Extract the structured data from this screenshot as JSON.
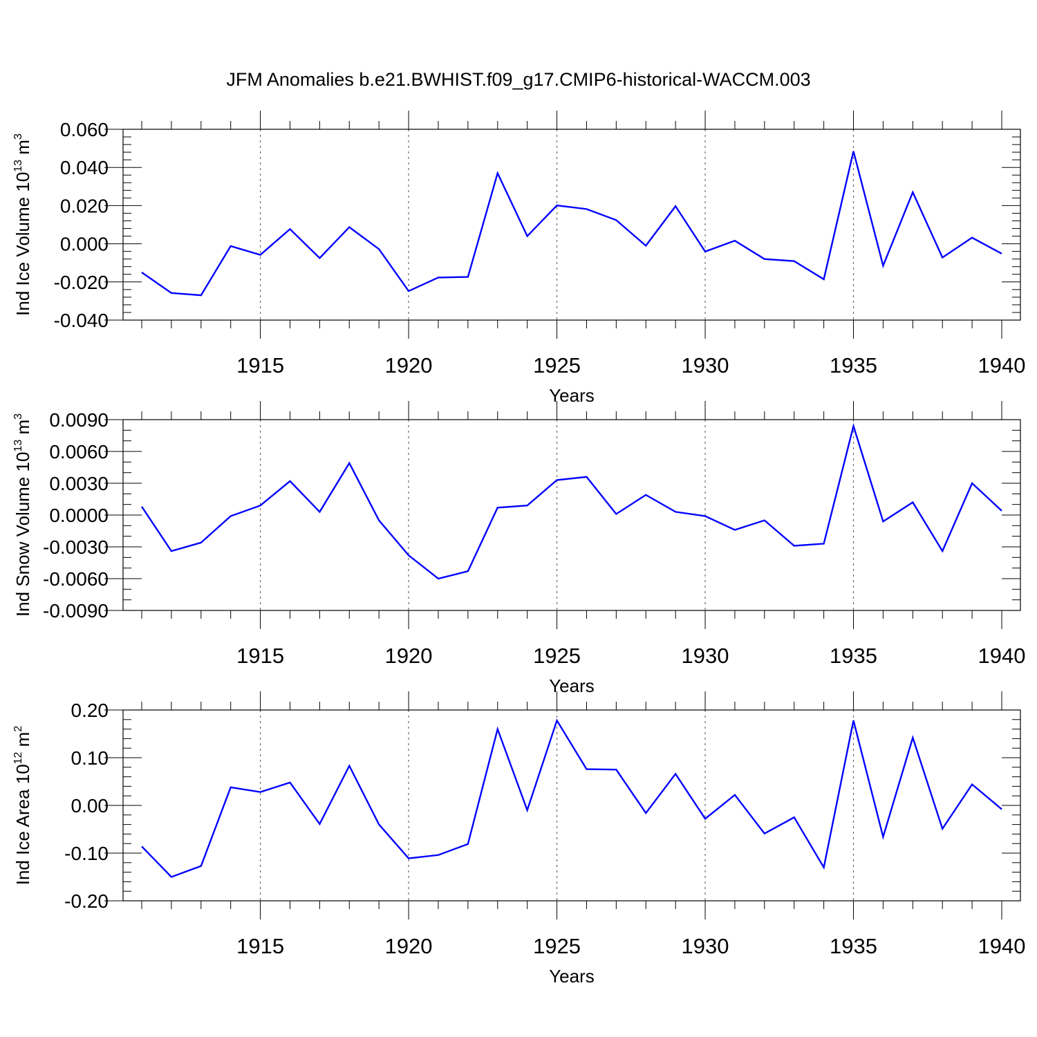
{
  "title": "JFM Anomalies b.e21.BWHIST.f09_g17.CMIP6-historical-WACCM.003",
  "colors": {
    "line": "#0000ff",
    "grid": "#666666",
    "axis": "#000000"
  },
  "chart_data": [
    {
      "type": "line",
      "ylabel": {
        "text": "Ind Ice Volume 10",
        "sup1": "13",
        "unit": " m",
        "sup2": "3"
      },
      "xlabel": "Years",
      "xlim": [
        1911,
        1940
      ],
      "ylim": [
        -0.04,
        0.06
      ],
      "yticks": [
        -0.04,
        -0.02,
        0.0,
        0.02,
        0.04,
        0.06
      ],
      "yticklabels": [
        "-0.040",
        "-0.020",
        "0.000",
        "0.020",
        "0.040",
        "0.060"
      ],
      "yminor": 0.004,
      "xticks": [
        1915,
        1920,
        1925,
        1930,
        1935,
        1940
      ],
      "xticklabels": [
        "1915",
        "1920",
        "1925",
        "1930",
        "1935",
        "1940"
      ],
      "x": [
        1911,
        1912,
        1913,
        1914,
        1915,
        1916,
        1917,
        1918,
        1919,
        1920,
        1921,
        1922,
        1923,
        1924,
        1925,
        1926,
        1927,
        1928,
        1929,
        1930,
        1931,
        1932,
        1933,
        1934,
        1935,
        1936,
        1937,
        1938,
        1939,
        1940
      ],
      "series": [
        {
          "name": "Ind Ice Volume",
          "values": [
            -0.015,
            -0.0258,
            -0.027,
            -0.0012,
            -0.0058,
            0.0077,
            -0.0075,
            0.0087,
            -0.0028,
            -0.0248,
            -0.0177,
            -0.0174,
            0.037,
            0.004,
            0.0201,
            0.0182,
            0.0124,
            -0.001,
            0.0197,
            -0.0041,
            0.0016,
            -0.008,
            -0.0091,
            -0.0186,
            0.0485,
            -0.0115,
            0.027,
            -0.0072,
            0.0032,
            -0.0052
          ]
        }
      ]
    },
    {
      "type": "line",
      "ylabel": {
        "text": "Ind Snow Volume 10",
        "sup1": "13",
        "unit": " m",
        "sup2": "3"
      },
      "xlabel": "Years",
      "xlim": [
        1911,
        1940
      ],
      "ylim": [
        -0.009,
        0.009
      ],
      "yticks": [
        -0.009,
        -0.006,
        -0.003,
        0.0,
        0.003,
        0.006,
        0.009
      ],
      "yticklabels": [
        "-0.0090",
        "-0.0060",
        "-0.0030",
        "0.0000",
        "0.0030",
        "0.0060",
        "0.0090"
      ],
      "yminor": 0.001,
      "xticks": [
        1915,
        1920,
        1925,
        1930,
        1935,
        1940
      ],
      "xticklabels": [
        "1915",
        "1920",
        "1925",
        "1930",
        "1935",
        "1940"
      ],
      "x": [
        1911,
        1912,
        1913,
        1914,
        1915,
        1916,
        1917,
        1918,
        1919,
        1920,
        1921,
        1922,
        1923,
        1924,
        1925,
        1926,
        1927,
        1928,
        1929,
        1930,
        1931,
        1932,
        1933,
        1934,
        1935,
        1936,
        1937,
        1938,
        1939,
        1940
      ],
      "series": [
        {
          "name": "Ind Snow Volume",
          "values": [
            0.0008,
            -0.0034,
            -0.0026,
            -0.0001,
            0.0009,
            0.0032,
            0.0003,
            0.0049,
            -0.0005,
            -0.0038,
            -0.006,
            -0.0053,
            0.0007,
            0.0009,
            0.0033,
            0.0036,
            0.0001,
            0.0019,
            0.0003,
            -0.0001,
            -0.0014,
            -0.0005,
            -0.0029,
            -0.0027,
            0.0084,
            -0.0006,
            0.0012,
            -0.0034,
            0.003,
            0.0004
          ]
        }
      ]
    },
    {
      "type": "line",
      "ylabel": {
        "text": "Ind Ice Area 10",
        "sup1": "12",
        "unit": " m",
        "sup2": "2"
      },
      "xlabel": "Years",
      "xlim": [
        1911,
        1940
      ],
      "ylim": [
        -0.2,
        0.2
      ],
      "yticks": [
        -0.2,
        -0.1,
        0.0,
        0.1,
        0.2
      ],
      "yticklabels": [
        "-0.20",
        "-0.10",
        "0.00",
        "0.10",
        "0.20"
      ],
      "yminor": 0.02,
      "xticks": [
        1915,
        1920,
        1925,
        1930,
        1935,
        1940
      ],
      "xticklabels": [
        "1915",
        "1920",
        "1925",
        "1930",
        "1935",
        "1940"
      ],
      "x": [
        1911,
        1912,
        1913,
        1914,
        1915,
        1916,
        1917,
        1918,
        1919,
        1920,
        1921,
        1922,
        1923,
        1924,
        1925,
        1926,
        1927,
        1928,
        1929,
        1930,
        1931,
        1932,
        1933,
        1934,
        1935,
        1936,
        1937,
        1938,
        1939,
        1940
      ],
      "series": [
        {
          "name": "Ind Ice Area",
          "values": [
            -0.086,
            -0.15,
            -0.127,
            0.038,
            0.028,
            0.048,
            -0.039,
            0.083,
            -0.04,
            -0.111,
            -0.104,
            -0.081,
            0.16,
            -0.01,
            0.178,
            0.076,
            0.075,
            -0.016,
            0.066,
            -0.028,
            0.022,
            -0.059,
            -0.025,
            -0.13,
            0.178,
            -0.066,
            0.142,
            -0.049,
            0.044,
            -0.008
          ]
        }
      ]
    }
  ]
}
